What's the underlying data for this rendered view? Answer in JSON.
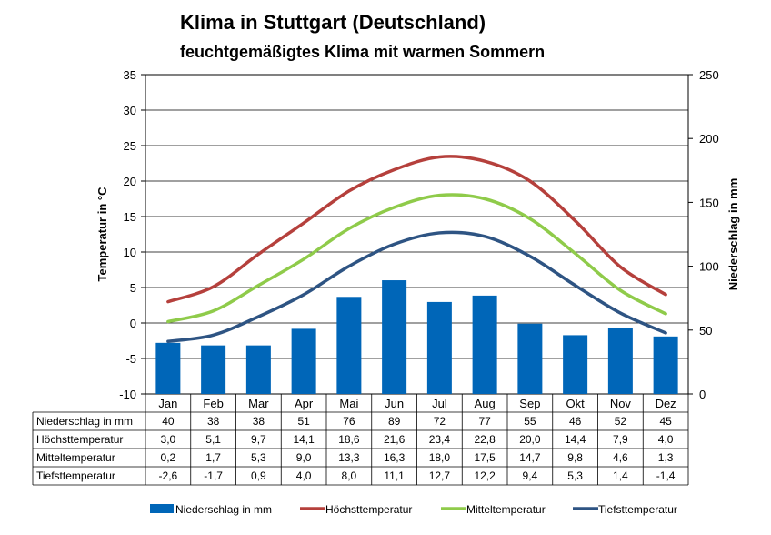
{
  "title": "Klima in Stuttgart (Deutschland)",
  "subtitle": "feuchtgemäßigtes Klima mit warmen Sommern",
  "chart_data": {
    "type": "bar",
    "title": "Klima in Stuttgart (Deutschland)",
    "subtitle": "feuchtgemäßigtes Klima mit warmen Sommern",
    "categories": [
      "Jan",
      "Feb",
      "Mar",
      "Apr",
      "Mai",
      "Jun",
      "Jul",
      "Aug",
      "Sep",
      "Okt",
      "Nov",
      "Dez"
    ],
    "y_left": {
      "label": "Temperatur in °C",
      "range": [
        -10,
        35
      ],
      "ticks": [
        "35",
        "30",
        "25",
        "20",
        "15",
        "10",
        "5",
        "0",
        "-5",
        "-10"
      ]
    },
    "y_right": {
      "label": "Niederschlag in mm",
      "range": [
        0,
        250
      ],
      "ticks": [
        "250",
        "200",
        "150",
        "100",
        "50",
        "0"
      ]
    },
    "grid": true,
    "legend_position": "bottom",
    "series": [
      {
        "name": "Niederschlag in mm",
        "type": "bar",
        "axis": "right",
        "color": "#0066b8",
        "values": [
          40,
          38,
          38,
          51,
          76,
          89,
          72,
          77,
          55,
          46,
          52,
          45
        ],
        "labels": [
          "40",
          "38",
          "38",
          "51",
          "76",
          "89",
          "72",
          "77",
          "55",
          "46",
          "52",
          "45"
        ]
      },
      {
        "name": "Höchsttemperatur",
        "type": "line",
        "axis": "left",
        "color": "#b5403c",
        "values": [
          3.0,
          5.1,
          9.7,
          14.1,
          18.6,
          21.6,
          23.4,
          22.8,
          20.0,
          14.4,
          7.9,
          4.0
        ],
        "labels": [
          "3,0",
          "5,1",
          "9,7",
          "14,1",
          "18,6",
          "21,6",
          "23,4",
          "22,8",
          "20,0",
          "14,4",
          "7,9",
          "4,0"
        ]
      },
      {
        "name": "Mitteltemperatur",
        "type": "line",
        "axis": "left",
        "color": "#8fcb4a",
        "values": [
          0.2,
          1.7,
          5.3,
          9.0,
          13.3,
          16.3,
          18.0,
          17.5,
          14.7,
          9.8,
          4.6,
          1.3
        ],
        "labels": [
          "0,2",
          "1,7",
          "5,3",
          "9,0",
          "13,3",
          "16,3",
          "18,0",
          "17,5",
          "14,7",
          "9,8",
          "4,6",
          "1,3"
        ]
      },
      {
        "name": "Tiefsttemperatur",
        "type": "line",
        "axis": "left",
        "color": "#2e5483",
        "values": [
          -2.6,
          -1.7,
          0.9,
          4.0,
          8.0,
          11.1,
          12.7,
          12.2,
          9.4,
          5.3,
          1.4,
          -1.4
        ],
        "labels": [
          "-2,6",
          "-1,7",
          "0,9",
          "4,0",
          "8,0",
          "11,1",
          "12,7",
          "12,2",
          "9,4",
          "5,3",
          "1,4",
          "-1,4"
        ]
      }
    ]
  }
}
